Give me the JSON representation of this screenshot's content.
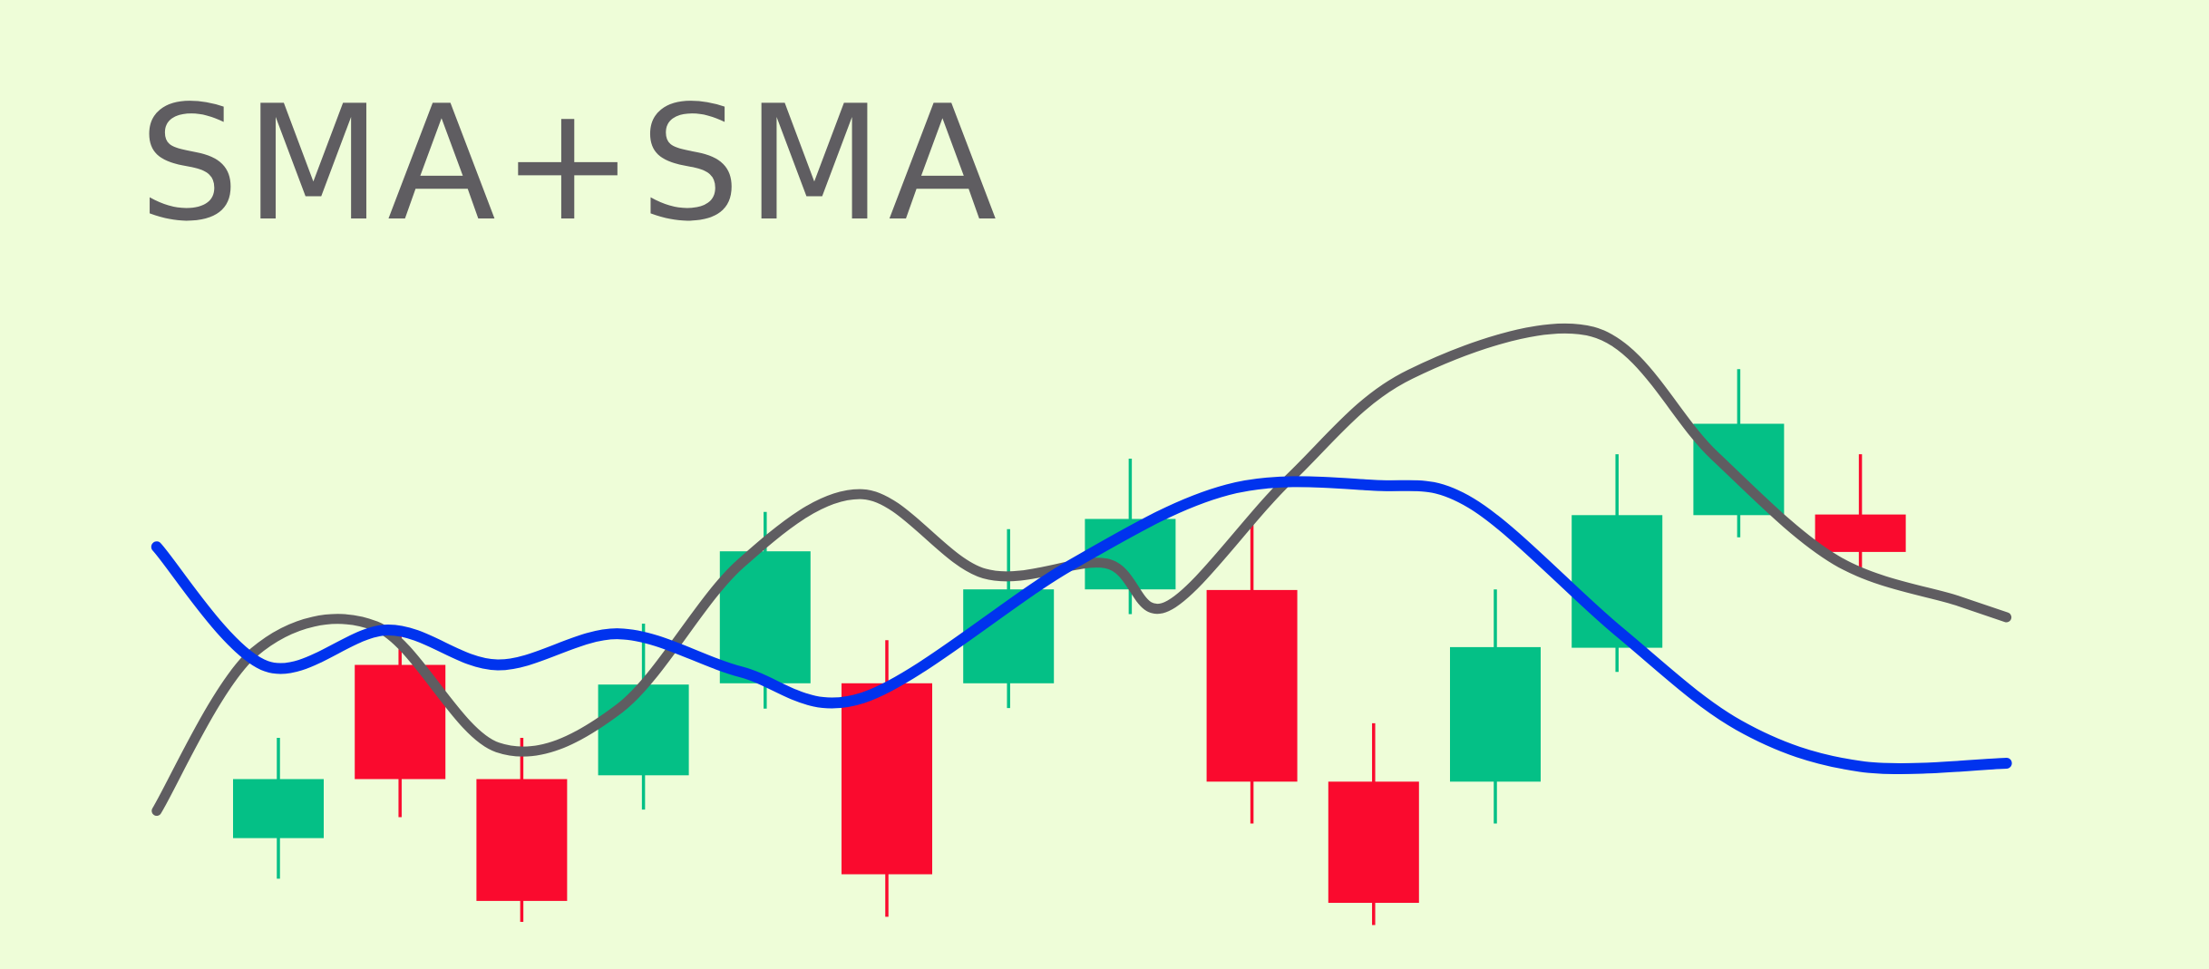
{
  "chart_data": {
    "type": "candlestick",
    "title": "SMA+SMA",
    "xlabel": "",
    "ylabel": "",
    "axes_visible": false,
    "grid": false,
    "ylim": [
      0,
      100
    ],
    "candles": [
      {
        "open": 13.2,
        "close": 22.5,
        "high": 29.0,
        "low": 6.8
      },
      {
        "open": 40.5,
        "close": 22.5,
        "high": 45.7,
        "low": 16.5
      },
      {
        "open": 22.5,
        "close": 3.3,
        "high": 29.0,
        "low": 0.0
      },
      {
        "open": 23.1,
        "close": 37.4,
        "high": 47.0,
        "low": 17.7
      },
      {
        "open": 37.6,
        "close": 58.4,
        "high": 64.6,
        "low": 33.6
      },
      {
        "open": 37.6,
        "close": 7.5,
        "high": 44.4,
        "low": 0.8
      },
      {
        "open": 37.6,
        "close": 52.4,
        "high": 61.9,
        "low": 33.7
      },
      {
        "open": 52.4,
        "close": 63.5,
        "high": 73.0,
        "low": 48.5
      },
      {
        "open": 52.3,
        "close": 22.1,
        "high": 62.6,
        "low": 15.5
      },
      {
        "open": 22.1,
        "close": 3.0,
        "high": 31.3,
        "low": -0.5
      },
      {
        "open": 22.1,
        "close": 43.3,
        "high": 52.4,
        "low": 15.5
      },
      {
        "open": 43.2,
        "close": 64.1,
        "high": 73.7,
        "low": 39.4
      },
      {
        "open": 64.1,
        "close": 78.5,
        "high": 87.1,
        "low": 60.6
      },
      {
        "open": 64.2,
        "close": 58.3,
        "high": 73.7,
        "low": 54.9
      }
    ],
    "series": [
      {
        "line": "fast-sma",
        "color": "#5F5D61",
        "x": [
          0.0,
          0.8,
          1.8,
          2.8,
          3.8,
          4.8,
          5.8,
          6.8,
          7.8,
          8.3,
          9.3,
          10.3,
          11.8,
          12.8,
          13.8,
          14.8,
          15.2
        ],
        "y": [
          17.5,
          42.5,
          46.6,
          27.5,
          33.6,
          56.5,
          67.4,
          54.9,
          56.5,
          49.7,
          69.7,
          86.3,
          93.0,
          73.5,
          57.0,
          50.6,
          48.0
        ]
      },
      {
        "line": "slow-sma",
        "color": "#0033EE",
        "x": [
          0.0,
          0.9,
          1.9,
          2.8,
          3.8,
          4.8,
          5.8,
          7.5,
          8.8,
          10.0,
          10.8,
          12.0,
          13.0,
          14.0,
          15.2
        ],
        "y": [
          59.1,
          40.3,
          46.0,
          40.5,
          45.4,
          39.4,
          35.3,
          56.1,
          68.1,
          68.8,
          66.0,
          46.0,
          31.0,
          24.5,
          25.0
        ]
      }
    ],
    "colors": {
      "background": "#EEFDD8",
      "bullish": "#04C086",
      "bearish": "#FA0A2E",
      "title": "#5F5D61"
    }
  }
}
